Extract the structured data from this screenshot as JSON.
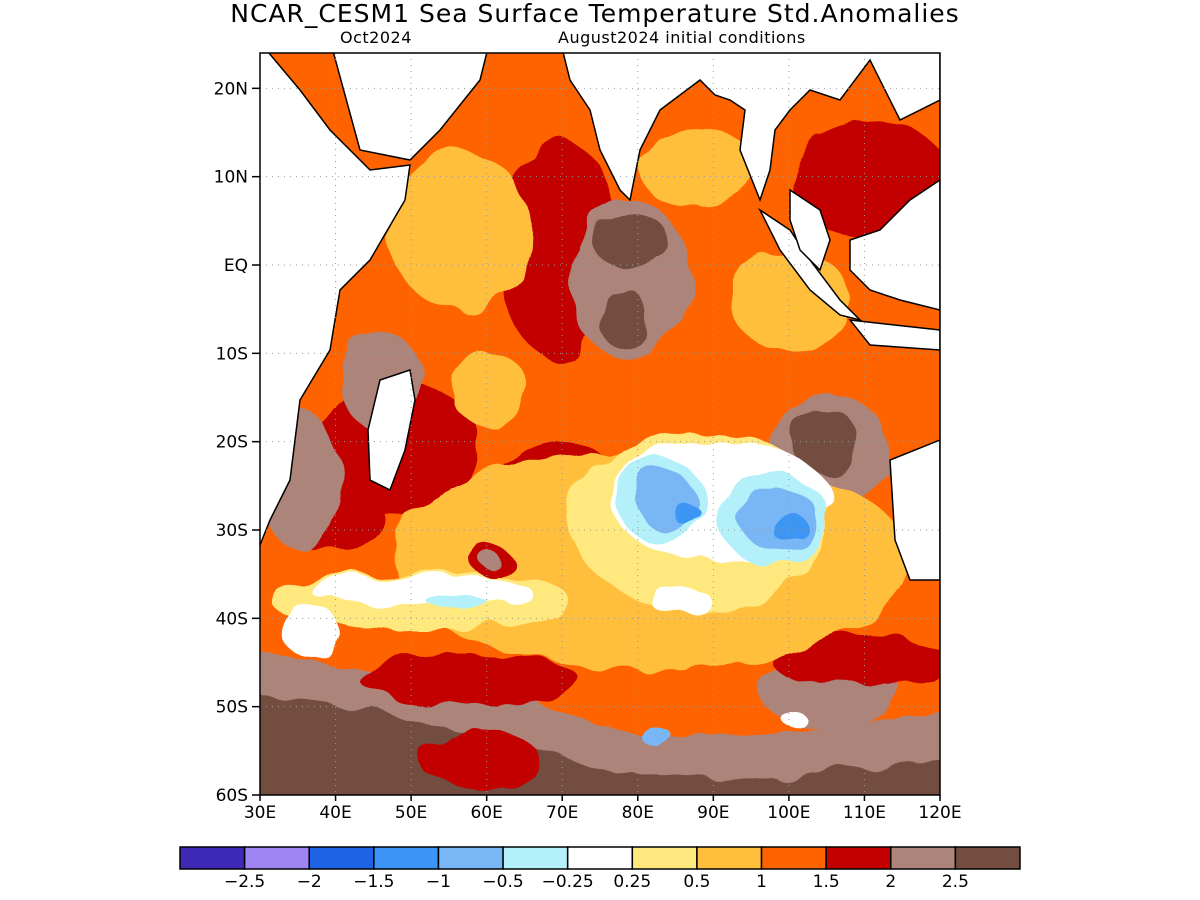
{
  "header": {
    "title": "NCAR_CESM1 Sea Surface Temperature Std.Anomalies",
    "month": "Oct2024",
    "init": "August2024 initial conditions"
  },
  "axes": {
    "lat_labels": [
      "20N",
      "10N",
      "EQ",
      "10S",
      "20S",
      "30S",
      "40S",
      "50S",
      "60S"
    ],
    "lon_labels": [
      "30E",
      "40E",
      "50E",
      "60E",
      "70E",
      "80E",
      "90E",
      "100E",
      "110E",
      "120E"
    ],
    "lat_range": [
      -60,
      24
    ],
    "lon_range": [
      30,
      120
    ],
    "grid": "dotted"
  },
  "colorbar": {
    "colors": [
      "#3f2ab8",
      "#9f85f4",
      "#1e62e6",
      "#3c95f4",
      "#78b6f6",
      "#b4f0fa",
      "#ffffff",
      "#ffe97e",
      "#ffbf3c",
      "#ff6300",
      "#c30000",
      "#ad847a",
      "#724d40"
    ],
    "labels": [
      "−2.5",
      "−2",
      "−1.5",
      "−1",
      "−0.5",
      "−0.25",
      "0.25",
      "0.5",
      "1",
      "1.5",
      "2",
      "2.5"
    ]
  }
}
